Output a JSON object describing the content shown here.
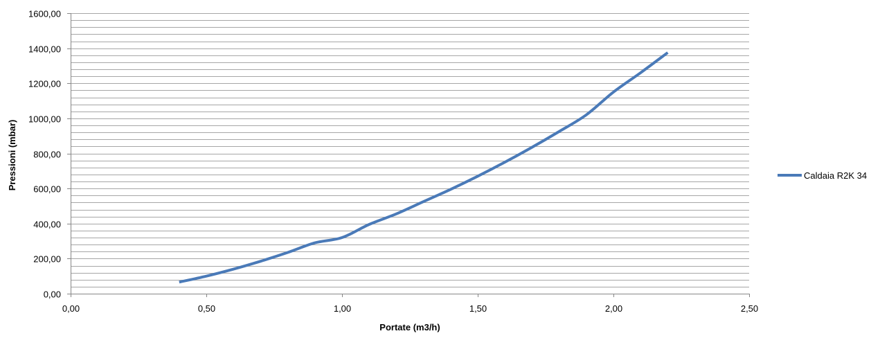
{
  "chart_data": {
    "type": "line",
    "title": "",
    "xlabel": "Portate (m3/h)",
    "ylabel": "Pressioni (mbar)",
    "xlim": [
      0,
      2.5
    ],
    "ylim": [
      0,
      1600
    ],
    "x_ticks": [
      0,
      0.5,
      1.0,
      1.5,
      2.0,
      2.5
    ],
    "x_tick_labels": [
      "0,00",
      "0,50",
      "1,00",
      "1,50",
      "2,00",
      "2,50"
    ],
    "y_ticks": [
      0,
      200,
      400,
      600,
      800,
      1000,
      1200,
      1400,
      1600
    ],
    "y_tick_labels": [
      "0,00",
      "200,00",
      "400,00",
      "600,00",
      "800,00",
      "1000,00",
      "1200,00",
      "1400,00",
      "1600,00"
    ],
    "y_minor_step": 40,
    "grid": true,
    "legend_position": "right",
    "colors": {
      "series": "#4a7ab8",
      "grid": "#a6a6a6",
      "axis": "#868686"
    },
    "series": [
      {
        "name": "Caldaia R2K 34",
        "x": [
          0.4,
          0.5,
          0.6,
          0.7,
          0.8,
          0.9,
          1.0,
          1.1,
          1.2,
          1.3,
          1.4,
          1.5,
          1.6,
          1.7,
          1.8,
          1.9,
          2.0,
          2.1,
          2.2
        ],
        "y": [
          66,
          100,
          140,
          185,
          235,
          290,
          320,
          395,
          455,
          525,
          595,
          670,
          750,
          835,
          925,
          1020,
          1150,
          1260,
          1375
        ]
      }
    ]
  }
}
